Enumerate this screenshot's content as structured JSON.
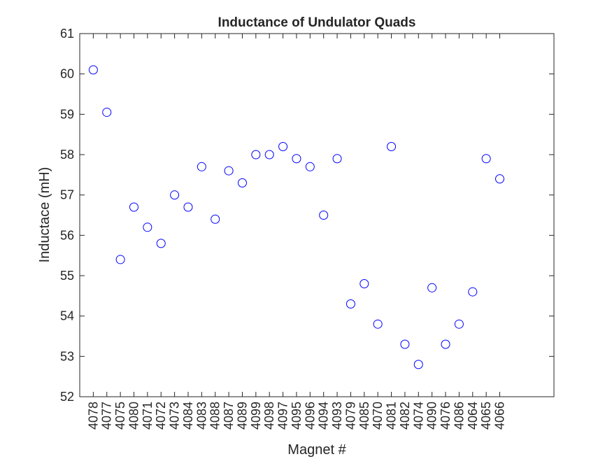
{
  "chart_data": {
    "type": "scatter",
    "title": "Inductance of Undulator Quads",
    "xlabel": "Magnet #",
    "ylabel": "Inductace (mH)",
    "categories": [
      "4078",
      "4077",
      "4075",
      "4080",
      "4071",
      "4072",
      "4073",
      "4084",
      "4083",
      "4088",
      "4087",
      "4089",
      "4099",
      "4098",
      "4097",
      "4095",
      "4096",
      "4094",
      "4093",
      "4079",
      "4085",
      "4070",
      "4081",
      "4082",
      "4074",
      "4090",
      "4076",
      "4086",
      "4064",
      "4065",
      "4066"
    ],
    "series": [
      {
        "values": [
          60.1,
          59.05,
          55.4,
          56.7,
          56.2,
          55.8,
          57.0,
          56.7,
          57.7,
          56.4,
          57.6,
          57.3,
          58.0,
          58.0,
          58.2,
          57.9,
          57.7,
          56.5,
          57.9,
          54.3,
          54.8,
          53.8,
          58.2,
          53.3,
          52.8,
          54.7,
          53.3,
          53.8,
          54.6,
          57.9,
          57.4
        ],
        "marker": "circle-open",
        "color": "#0000ff"
      }
    ],
    "ylim": [
      52,
      61
    ],
    "yticks": [
      52,
      53,
      54,
      55,
      56,
      57,
      58,
      59,
      60,
      61
    ],
    "xlim": [
      0,
      35
    ],
    "grid": false,
    "legend": "none"
  }
}
